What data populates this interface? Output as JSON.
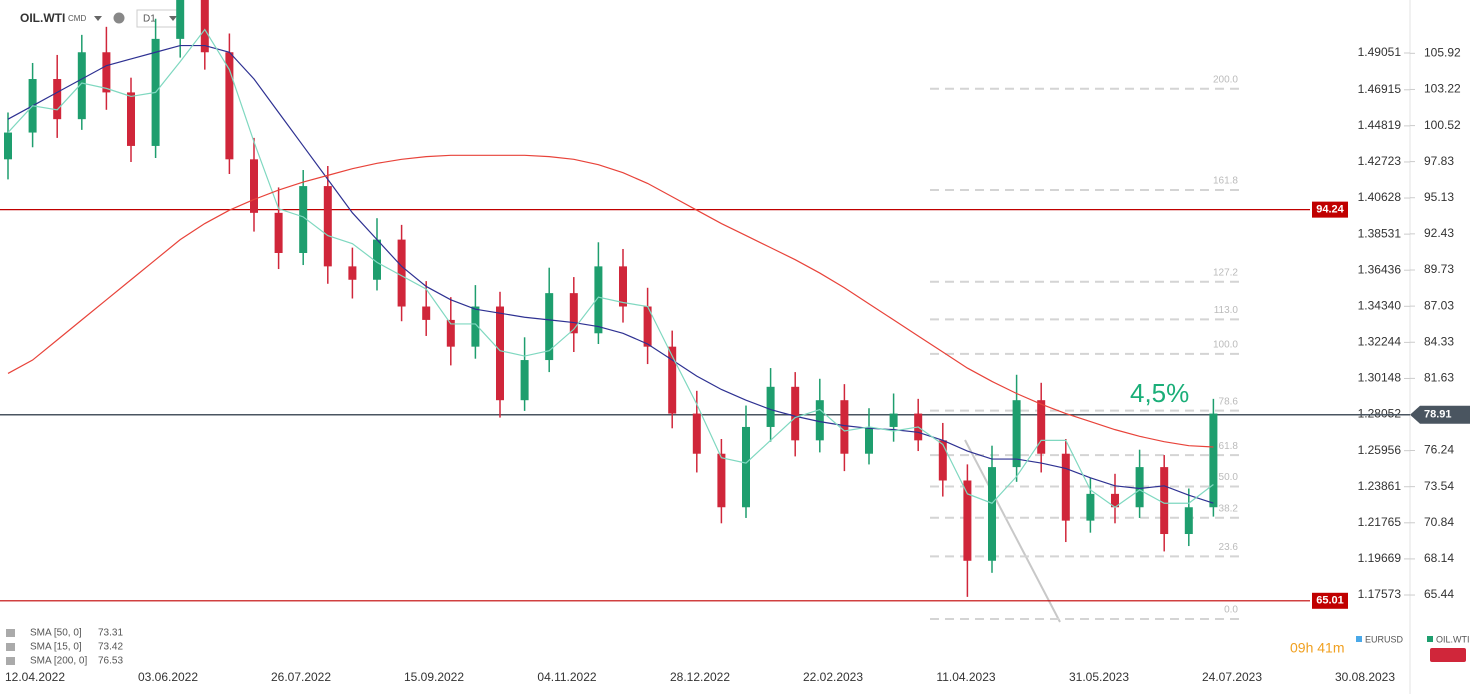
{
  "toolbar": {
    "symbol": "OIL.WTI",
    "market": "CMD",
    "timeframe": "D1"
  },
  "chart_data": {
    "type": "candlestick",
    "x_labels": [
      "12.04.2022",
      "03.06.2022",
      "26.07.2022",
      "15.09.2022",
      "04.11.2022",
      "28.12.2022",
      "22.02.2023",
      "11.04.2023",
      "31.05.2023",
      "24.07.2023",
      "30.08.2023"
    ],
    "open": [
      98,
      100,
      104,
      101,
      106,
      103,
      99,
      107,
      110,
      106,
      98,
      94,
      91,
      96,
      90,
      89,
      92,
      87,
      86,
      84,
      87,
      80,
      83,
      88,
      85,
      90,
      87,
      84,
      79,
      76,
      72,
      78,
      81,
      77,
      80,
      76,
      78,
      79,
      77,
      74,
      68,
      75,
      80,
      76,
      71,
      73,
      72,
      75,
      70,
      72
    ],
    "high": [
      101.5,
      105.2,
      105.8,
      107.3,
      107.9,
      104.1,
      108.5,
      111.8,
      111.2,
      107.4,
      99.6,
      95.9,
      97.2,
      97.5,
      91.4,
      93.6,
      93.1,
      88.9,
      87.7,
      88.6,
      88.1,
      84.7,
      89.9,
      89.2,
      91.8,
      91.3,
      88.4,
      85.2,
      80.7,
      77.1,
      79.6,
      82.4,
      82.1,
      81.6,
      81.2,
      79.4,
      80.5,
      80.1,
      78.3,
      75.2,
      76.6,
      81.9,
      81.3,
      77.1,
      74.2,
      74.5,
      76.3,
      75.9,
      73.4,
      80.1
    ],
    "low": [
      96.5,
      98.9,
      99.6,
      100.2,
      101.7,
      97.8,
      98.1,
      105.6,
      104.7,
      96.9,
      92.6,
      89.8,
      90.1,
      88.7,
      87.6,
      88.2,
      85.9,
      84.8,
      82.6,
      83.1,
      78.7,
      79.2,
      82.1,
      83.6,
      84.2,
      85.8,
      82.7,
      77.9,
      74.6,
      70.8,
      71.2,
      76.9,
      75.8,
      76.1,
      74.7,
      75.2,
      76.9,
      76.2,
      72.8,
      65.3,
      67.1,
      73.9,
      74.6,
      69.4,
      70.1,
      70.8,
      71.2,
      68.7,
      69.1,
      71.3
    ],
    "close": [
      100,
      104,
      101,
      106,
      103,
      99,
      107,
      110,
      106,
      98,
      94,
      91,
      96,
      90,
      89,
      92,
      87,
      86,
      84,
      87,
      80,
      83,
      88,
      85,
      90,
      87,
      84,
      79,
      76,
      72,
      78,
      81,
      77,
      80,
      76,
      78,
      79,
      77,
      74,
      68,
      75,
      80,
      76,
      71,
      73,
      72,
      75,
      70,
      72,
      79
    ],
    "up_color": "#1e9e6e",
    "down_color": "#d0263a",
    "ylim": [
      62.08,
      108.56
    ],
    "yticks": [
      65.44,
      68.14,
      70.84,
      73.54,
      76.24,
      81.63,
      84.33,
      87.03,
      89.73,
      92.43,
      95.13,
      97.83,
      100.52,
      103.22,
      105.92
    ],
    "y2lim": [
      1.14959,
      1.51084
    ],
    "y2ticks": [
      1.17573,
      1.19669,
      1.21765,
      1.23861,
      1.25956,
      1.28052,
      1.30148,
      1.32244,
      {
        "value": 1.3434,
        "label": "1.34340"
      },
      1.36436,
      1.38531,
      1.40628,
      1.42723,
      1.44819,
      1.46915,
      1.49051
    ],
    "series": [
      {
        "name": "SMA [50, 0]",
        "color": "#2e3192",
        "last": 73.31,
        "values": [
          101,
          102,
          103,
          104,
          105,
          105.5,
          106,
          106.5,
          106.5,
          106,
          104,
          101.5,
          99,
          96.5,
          94,
          92,
          90,
          88.5,
          87.5,
          86.8,
          86.5,
          86.2,
          86,
          85.8,
          85.5,
          85,
          84.2,
          83,
          81.8,
          80.8,
          80,
          79.3,
          78.8,
          78.4,
          78.1,
          77.9,
          77.8,
          77.6,
          77,
          76.2,
          75.6,
          75.6,
          75.3,
          74.9,
          74.2,
          73.6,
          73.4,
          73.6,
          72.9,
          72.3
        ]
      },
      {
        "name": "SMA [15, 0]",
        "color": "#7fd8c0",
        "last": 73.42,
        "values": [
          100,
          102,
          101.7,
          103.7,
          103.3,
          102.7,
          103,
          105.3,
          107.7,
          104.7,
          99.3,
          94.3,
          93.7,
          92.3,
          91.7,
          90.3,
          89.3,
          88.3,
          85.7,
          85.7,
          83.7,
          83.3,
          83.7,
          85.3,
          87.7,
          87.3,
          87,
          83.3,
          79.7,
          75.7,
          75.3,
          77,
          78.7,
          79.3,
          77.7,
          78,
          77.7,
          78,
          76.7,
          73,
          72.3,
          74.3,
          77,
          77,
          73.3,
          72,
          73.3,
          72.3,
          72.3,
          73.7
        ]
      },
      {
        "name": "SMA [200, 0]",
        "color": "#e8433a",
        "last": 76.53,
        "values": [
          82,
          83,
          84.5,
          86,
          87.5,
          89,
          90.5,
          92,
          93.2,
          94.2,
          95,
          95.7,
          96.3,
          96.8,
          97.3,
          97.7,
          98,
          98.2,
          98.3,
          98.3,
          98.3,
          98.3,
          98.2,
          98,
          97.6,
          97,
          96.2,
          95.2,
          94.2,
          93.2,
          92.3,
          91.4,
          90.5,
          89.5,
          88.4,
          87.2,
          86,
          84.8,
          83.6,
          82.4,
          81.4,
          80.5,
          79.7,
          79,
          78.4,
          77.8,
          77.3,
          76.9,
          76.6,
          76.5
        ]
      }
    ],
    "hlines": [
      {
        "value": 94.24,
        "color": "#c00000"
      },
      {
        "value": 65.01,
        "color": "#c00000"
      },
      {
        "value": 78.91,
        "color": "#4a5560"
      }
    ],
    "fib": {
      "low": 63.65,
      "high": 83.46,
      "levels": [
        {
          "value": 0,
          "label": "0.0"
        },
        23.6,
        38.2,
        {
          "value": 50,
          "label": "50.0"
        },
        61.8,
        78.6,
        {
          "value": 100,
          "label": "100.0"
        },
        {
          "value": 113,
          "label": "113.0"
        },
        127.2,
        161.8,
        {
          "value": 200,
          "label": "200.0"
        }
      ]
    },
    "annotation": "4,5%",
    "countdown": "09h 41m",
    "instruments": [
      {
        "name": "EURUSD",
        "color": "#4aa8e8"
      },
      {
        "name": "OIL.WTI",
        "color": "#1e9e6e"
      }
    ]
  }
}
